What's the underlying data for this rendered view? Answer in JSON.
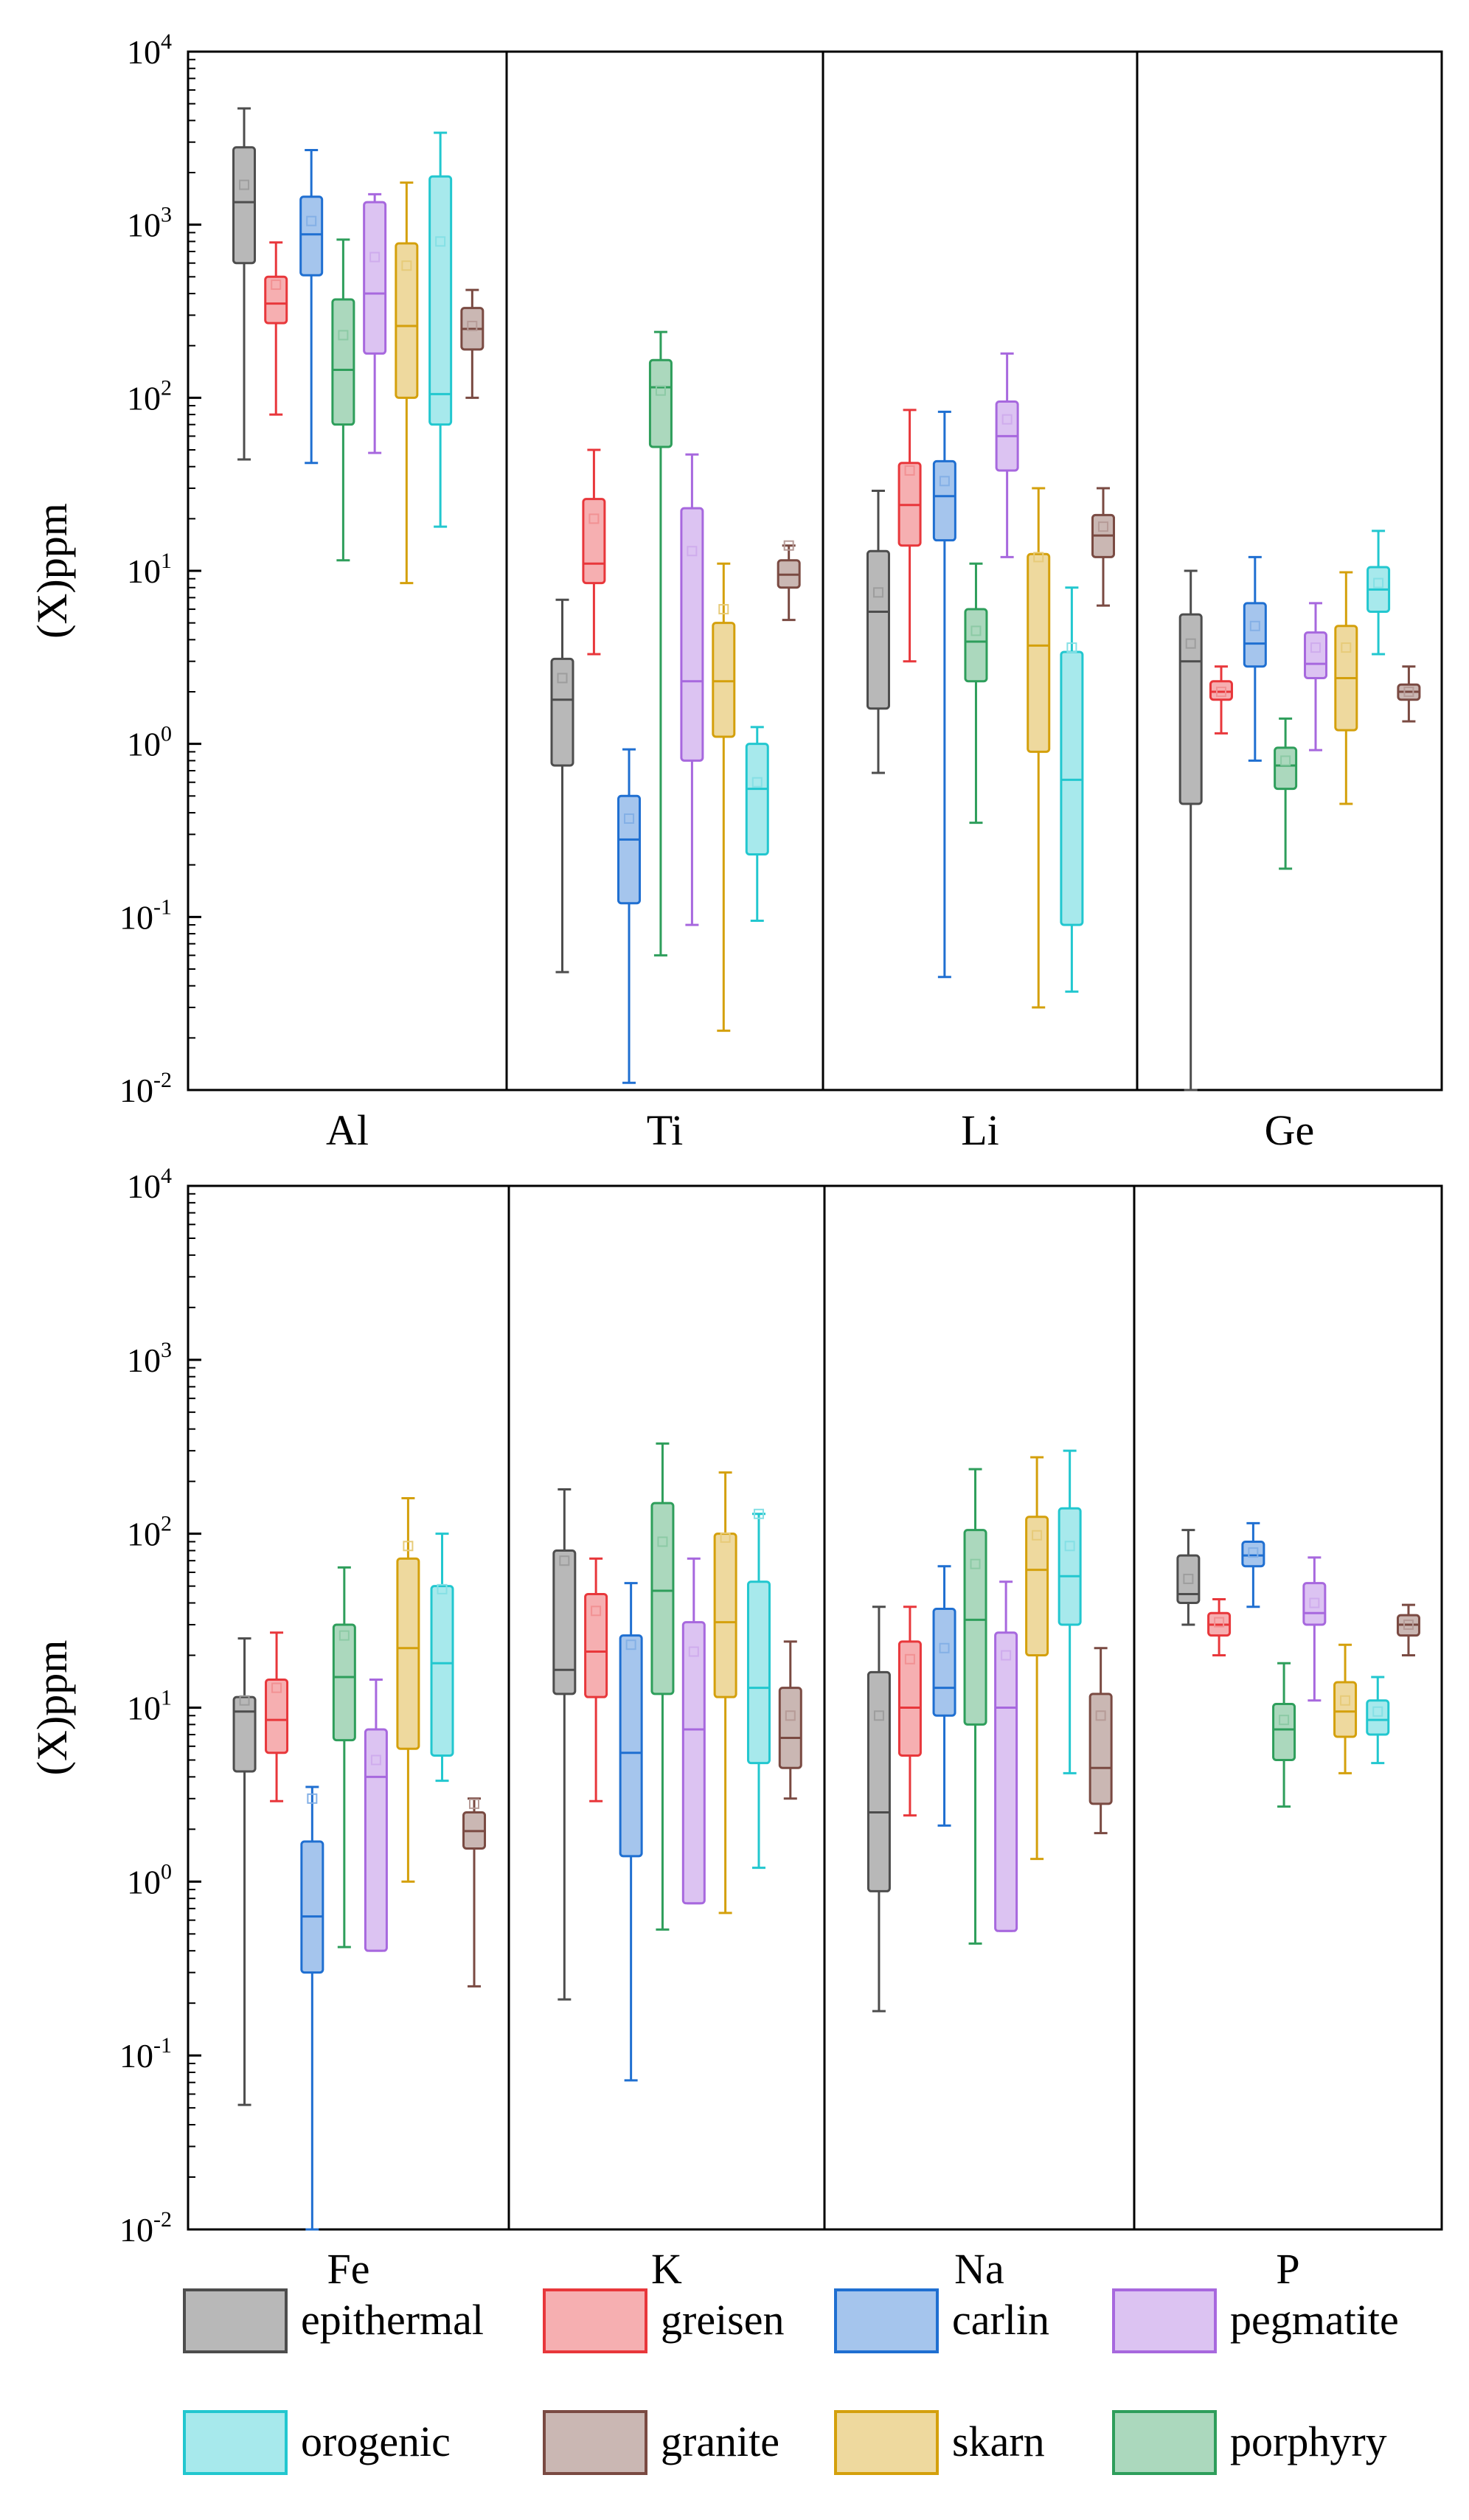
{
  "chart_data": {
    "type": "box",
    "scale": "log10",
    "series_order": [
      "epithermal",
      "greisen",
      "carlin",
      "porphyry",
      "pegmatite",
      "skarn",
      "orogenic",
      "granite"
    ],
    "colors": {
      "epithermal": "#4d4d4d",
      "greisen": "#e8373b",
      "carlin": "#1f6fd1",
      "porphyry": "#2e9e5b",
      "pegmatite": "#a768de",
      "skarn": "#d4a00c",
      "orogenic": "#22c7cf",
      "granite": "#7a4a42"
    },
    "legend": [
      {
        "label": "epithermal",
        "series": "epithermal"
      },
      {
        "label": "greisen",
        "series": "greisen"
      },
      {
        "label": "carlin",
        "series": "carlin"
      },
      {
        "label": "pegmatite",
        "series": "pegmatite"
      },
      {
        "label": "orogenic",
        "series": "orogenic"
      },
      {
        "label": "granite",
        "series": "granite"
      },
      {
        "label": "skarn",
        "series": "skarn"
      },
      {
        "label": "porphyry",
        "series": "porphyry"
      }
    ],
    "panels": [
      {
        "ylabel": "(X)ppm",
        "ylim": [
          0.01,
          10000
        ],
        "y_ticks": [
          {
            "base": "10",
            "exp": "-2"
          },
          {
            "base": "10",
            "exp": "-1"
          },
          {
            "base": "10",
            "exp": "0"
          },
          {
            "base": "10",
            "exp": "1"
          },
          {
            "base": "10",
            "exp": "2"
          },
          {
            "base": "10",
            "exp": "3"
          },
          {
            "base": "10",
            "exp": "4"
          }
        ],
        "groups": [
          {
            "label": "Al",
            "boxes": [
              {
                "series": "epithermal",
                "whisker_low": 44,
                "q1": 600,
                "median": 1350,
                "q3": 2800,
                "whisker_high": 4700,
                "mean": 1700
              },
              {
                "series": "greisen",
                "whisker_low": 80,
                "q1": 270,
                "median": 350,
                "q3": 500,
                "whisker_high": 790,
                "mean": 450
              },
              {
                "series": "carlin",
                "whisker_low": 42,
                "q1": 510,
                "median": 880,
                "q3": 1450,
                "whisker_high": 2700,
                "mean": 1050
              },
              {
                "series": "porphyry",
                "whisker_low": 11.5,
                "q1": 70,
                "median": 145,
                "q3": 370,
                "whisker_high": 820,
                "mean": 230
              },
              {
                "series": "pegmatite",
                "whisker_low": 48,
                "q1": 180,
                "median": 400,
                "q3": 1350,
                "whisker_high": 1500,
                "mean": 650
              },
              {
                "series": "skarn",
                "whisker_low": 8.5,
                "q1": 100,
                "median": 260,
                "q3": 780,
                "whisker_high": 1750,
                "mean": 580
              },
              {
                "series": "orogenic",
                "whisker_low": 18,
                "q1": 70,
                "median": 105,
                "q3": 1900,
                "whisker_high": 3400,
                "mean": 800
              },
              {
                "series": "granite",
                "whisker_low": 100,
                "q1": 190,
                "median": 250,
                "q3": 330,
                "whisker_high": 420,
                "mean": 260
              }
            ]
          },
          {
            "label": "Ti",
            "boxes": [
              {
                "series": "epithermal",
                "whisker_low": 0.048,
                "q1": 0.75,
                "median": 1.8,
                "q3": 3.1,
                "whisker_high": 6.8,
                "mean": 2.4
              },
              {
                "series": "greisen",
                "whisker_low": 3.3,
                "q1": 8.5,
                "median": 11,
                "q3": 26,
                "whisker_high": 50,
                "mean": 20
              },
              {
                "series": "carlin",
                "whisker_low": 0.011,
                "q1": 0.12,
                "median": 0.28,
                "q3": 0.5,
                "whisker_high": 0.93,
                "mean": 0.37
              },
              {
                "series": "porphyry",
                "whisker_low": 0.06,
                "q1": 52,
                "median": 115,
                "q3": 165,
                "whisker_high": 240,
                "mean": 110
              },
              {
                "series": "pegmatite",
                "whisker_low": 0.09,
                "q1": 0.8,
                "median": 2.3,
                "q3": 23,
                "whisker_high": 47,
                "mean": 13
              },
              {
                "series": "skarn",
                "whisker_low": 0.022,
                "q1": 1.1,
                "median": 2.3,
                "q3": 5,
                "whisker_high": 11,
                "mean": 6
              },
              {
                "series": "orogenic",
                "whisker_low": 0.095,
                "q1": 0.23,
                "median": 0.55,
                "q3": 1,
                "whisker_high": 1.25,
                "mean": 0.6
              },
              {
                "series": "granite",
                "whisker_low": 5.2,
                "q1": 8,
                "median": 9.5,
                "q3": 11.5,
                "whisker_high": 14,
                "mean": 14
              }
            ]
          },
          {
            "label": "Li",
            "boxes": [
              {
                "series": "epithermal",
                "whisker_low": 0.68,
                "q1": 1.6,
                "median": 5.8,
                "q3": 13,
                "whisker_high": 29,
                "mean": 7.5
              },
              {
                "series": "greisen",
                "whisker_low": 3,
                "q1": 14,
                "median": 24,
                "q3": 42,
                "whisker_high": 85,
                "mean": 38
              },
              {
                "series": "carlin",
                "whisker_low": 0.045,
                "q1": 15,
                "median": 27,
                "q3": 43,
                "whisker_high": 83,
                "mean": 33
              },
              {
                "series": "porphyry",
                "whisker_low": 0.35,
                "q1": 2.3,
                "median": 3.9,
                "q3": 6,
                "whisker_high": 11,
                "mean": 4.5
              },
              {
                "series": "pegmatite",
                "whisker_low": 12,
                "q1": 38,
                "median": 60,
                "q3": 95,
                "whisker_high": 180,
                "mean": 75
              },
              {
                "series": "skarn",
                "whisker_low": 0.03,
                "q1": 0.9,
                "median": 3.7,
                "q3": 12.5,
                "whisker_high": 30,
                "mean": 12
              },
              {
                "series": "orogenic",
                "whisker_low": 0.037,
                "q1": 0.09,
                "median": 0.62,
                "q3": 3.4,
                "whisker_high": 8,
                "mean": 3.6
              },
              {
                "series": "granite",
                "whisker_low": 6.3,
                "q1": 12,
                "median": 16,
                "q3": 21,
                "whisker_high": 30,
                "mean": 18
              }
            ]
          },
          {
            "label": "Ge",
            "boxes": [
              {
                "series": "epithermal",
                "whisker_low": 0.01,
                "q1": 0.45,
                "median": 3,
                "q3": 5.6,
                "whisker_high": 10,
                "mean": 3.8
              },
              {
                "series": "greisen",
                "whisker_low": 1.15,
                "q1": 1.8,
                "median": 2,
                "q3": 2.3,
                "whisker_high": 2.8,
                "mean": 2
              },
              {
                "series": "carlin",
                "whisker_low": 0.8,
                "q1": 2.8,
                "median": 3.8,
                "q3": 6.5,
                "whisker_high": 12,
                "mean": 4.8
              },
              {
                "series": "porphyry",
                "whisker_low": 0.19,
                "q1": 0.55,
                "median": 0.75,
                "q3": 0.95,
                "whisker_high": 1.4,
                "mean": 0.8
              },
              {
                "series": "pegmatite",
                "whisker_low": 0.92,
                "q1": 2.4,
                "median": 2.9,
                "q3": 4.4,
                "whisker_high": 6.5,
                "mean": 3.6
              },
              {
                "series": "skarn",
                "whisker_low": 0.45,
                "q1": 1.2,
                "median": 2.4,
                "q3": 4.8,
                "whisker_high": 9.8,
                "mean": 3.6
              },
              {
                "series": "orogenic",
                "whisker_low": 3.3,
                "q1": 5.8,
                "median": 7.8,
                "q3": 10.5,
                "whisker_high": 17,
                "mean": 8.5
              },
              {
                "series": "granite",
                "whisker_low": 1.35,
                "q1": 1.8,
                "median": 2,
                "q3": 2.2,
                "whisker_high": 2.8,
                "mean": 2
              }
            ]
          }
        ]
      },
      {
        "ylabel": "(X)ppm",
        "ylim": [
          0.01,
          10000
        ],
        "y_ticks": [
          {
            "base": "10",
            "exp": "-2"
          },
          {
            "base": "10",
            "exp": "-1"
          },
          {
            "base": "10",
            "exp": "0"
          },
          {
            "base": "10",
            "exp": "1"
          },
          {
            "base": "10",
            "exp": "2"
          },
          {
            "base": "10",
            "exp": "3"
          },
          {
            "base": "10",
            "exp": "4"
          }
        ],
        "groups": [
          {
            "label": "Fe",
            "boxes": [
              {
                "series": "epithermal",
                "whisker_low": 0.052,
                "q1": 4.3,
                "median": 9.5,
                "q3": 11.5,
                "whisker_high": 25,
                "mean": 11
              },
              {
                "series": "greisen",
                "whisker_low": 2.9,
                "q1": 5.5,
                "median": 8.5,
                "q3": 14.5,
                "whisker_high": 27,
                "mean": 13
              },
              {
                "series": "carlin",
                "whisker_low": 0.01,
                "q1": 0.3,
                "median": 0.63,
                "q3": 1.7,
                "whisker_high": 3.5,
                "mean": 3
              },
              {
                "series": "porphyry",
                "whisker_low": 0.42,
                "q1": 6.5,
                "median": 15,
                "q3": 30,
                "whisker_high": 64,
                "mean": 26
              },
              {
                "series": "pegmatite",
                "whisker_low": 0.4,
                "q1": 0.4,
                "median": 4,
                "q3": 7.5,
                "whisker_high": 14.5,
                "mean": 5
              },
              {
                "series": "skarn",
                "whisker_low": 1,
                "q1": 5.8,
                "median": 22,
                "q3": 72,
                "whisker_high": 160,
                "mean": 85
              },
              {
                "series": "orogenic",
                "whisker_low": 3.8,
                "q1": 5.3,
                "median": 18,
                "q3": 50,
                "whisker_high": 100,
                "mean": 48
              },
              {
                "series": "granite",
                "whisker_low": 0.25,
                "q1": 1.55,
                "median": 1.95,
                "q3": 2.5,
                "whisker_high": 3,
                "mean": 2.8
              }
            ]
          },
          {
            "label": "K",
            "boxes": [
              {
                "series": "epithermal",
                "whisker_low": 0.21,
                "q1": 12,
                "median": 16.5,
                "q3": 80,
                "whisker_high": 180,
                "mean": 70
              },
              {
                "series": "greisen",
                "whisker_low": 2.9,
                "q1": 11.5,
                "median": 21,
                "q3": 45,
                "whisker_high": 72,
                "mean": 36
              },
              {
                "series": "carlin",
                "whisker_low": 0.072,
                "q1": 1.4,
                "median": 5.5,
                "q3": 26,
                "whisker_high": 52,
                "mean": 23
              },
              {
                "series": "porphyry",
                "whisker_low": 0.53,
                "q1": 12,
                "median": 47,
                "q3": 150,
                "whisker_high": 330,
                "mean": 90
              },
              {
                "series": "pegmatite",
                "whisker_low": 0.75,
                "q1": 0.75,
                "median": 7.5,
                "q3": 31,
                "whisker_high": 72,
                "mean": 21
              },
              {
                "series": "skarn",
                "whisker_low": 0.66,
                "q1": 11.5,
                "median": 31,
                "q3": 100,
                "whisker_high": 225,
                "mean": 95
              },
              {
                "series": "orogenic",
                "whisker_low": 1.2,
                "q1": 4.8,
                "median": 13,
                "q3": 53,
                "whisker_high": 130,
                "mean": 130
              },
              {
                "series": "granite",
                "whisker_low": 3,
                "q1": 4.5,
                "median": 6.7,
                "q3": 13,
                "whisker_high": 24,
                "mean": 9
              }
            ]
          },
          {
            "label": "Na",
            "boxes": [
              {
                "series": "epithermal",
                "whisker_low": 0.18,
                "q1": 0.88,
                "median": 2.5,
                "q3": 16,
                "whisker_high": 38,
                "mean": 9
              },
              {
                "series": "greisen",
                "whisker_low": 2.4,
                "q1": 5.3,
                "median": 10,
                "q3": 24,
                "whisker_high": 38,
                "mean": 19
              },
              {
                "series": "carlin",
                "whisker_low": 2.1,
                "q1": 9,
                "median": 13,
                "q3": 37,
                "whisker_high": 65,
                "mean": 22
              },
              {
                "series": "porphyry",
                "whisker_low": 0.44,
                "q1": 8,
                "median": 32,
                "q3": 105,
                "whisker_high": 235,
                "mean": 67
              },
              {
                "series": "pegmatite",
                "whisker_low": 0.52,
                "q1": 0.52,
                "median": 10,
                "q3": 27,
                "whisker_high": 53,
                "mean": 20
              },
              {
                "series": "skarn",
                "whisker_low": 1.35,
                "q1": 20,
                "median": 62,
                "q3": 125,
                "whisker_high": 275,
                "mean": 98
              },
              {
                "series": "orogenic",
                "whisker_low": 4.2,
                "q1": 30,
                "median": 57,
                "q3": 140,
                "whisker_high": 300,
                "mean": 85
              },
              {
                "series": "granite",
                "whisker_low": 1.9,
                "q1": 2.8,
                "median": 4.5,
                "q3": 12,
                "whisker_high": 22,
                "mean": 9
              }
            ]
          },
          {
            "label": "P",
            "boxes": [
              {
                "series": "epithermal",
                "whisker_low": 30,
                "q1": 40,
                "median": 45,
                "q3": 75,
                "whisker_high": 105,
                "mean": 55
              },
              {
                "series": "greisen",
                "whisker_low": 20,
                "q1": 26,
                "median": 30,
                "q3": 35,
                "whisker_high": 42,
                "mean": 31
              },
              {
                "series": "carlin",
                "whisker_low": 38,
                "q1": 65,
                "median": 75,
                "q3": 90,
                "whisker_high": 115,
                "mean": 78
              },
              {
                "series": "porphyry",
                "whisker_low": 2.7,
                "q1": 5,
                "median": 7.5,
                "q3": 10.5,
                "whisker_high": 18,
                "mean": 8.5
              },
              {
                "series": "pegmatite",
                "whisker_low": 11,
                "q1": 30,
                "median": 35,
                "q3": 52,
                "whisker_high": 73,
                "mean": 40
              },
              {
                "series": "skarn",
                "whisker_low": 4.2,
                "q1": 6.8,
                "median": 9.5,
                "q3": 14,
                "whisker_high": 23,
                "mean": 11
              },
              {
                "series": "orogenic",
                "whisker_low": 4.8,
                "q1": 7,
                "median": 8.5,
                "q3": 11,
                "whisker_high": 15,
                "mean": 9.5
              },
              {
                "series": "granite",
                "whisker_low": 20,
                "q1": 26,
                "median": 30,
                "q3": 34,
                "whisker_high": 39,
                "mean": 30
              }
            ]
          }
        ]
      }
    ]
  }
}
